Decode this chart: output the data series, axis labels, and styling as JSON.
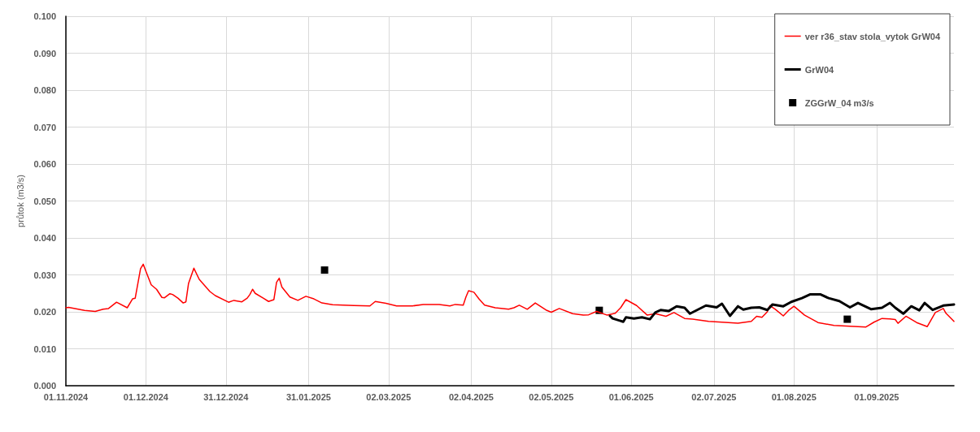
{
  "chart_data": {
    "type": "line",
    "ylabel": "průtok (m3/s)",
    "xlim": [
      "2024-11-01",
      "2025-09-30"
    ],
    "xticks": [
      {
        "value": "2024-11-01",
        "label": "01.11.2024"
      },
      {
        "value": "2024-12-01",
        "label": "01.12.2024"
      },
      {
        "value": "2024-12-31",
        "label": "31.12.2024"
      },
      {
        "value": "2025-01-31",
        "label": "31.01.2025"
      },
      {
        "value": "2025-03-02",
        "label": "02.03.2025"
      },
      {
        "value": "2025-04-02",
        "label": "02.04.2025"
      },
      {
        "value": "2025-05-02",
        "label": "02.05.2025"
      },
      {
        "value": "2025-06-01",
        "label": "01.06.2025"
      },
      {
        "value": "2025-07-02",
        "label": "02.07.2025"
      },
      {
        "value": "2025-08-01",
        "label": "01.08.2025"
      },
      {
        "value": "2025-09-01",
        "label": "01.09.2025"
      }
    ],
    "ylim": [
      0,
      0.1
    ],
    "yticks": [
      {
        "value": 0,
        "label": "0.000"
      },
      {
        "value": 0.01,
        "label": "0.010"
      },
      {
        "value": 0.02,
        "label": "0.020"
      },
      {
        "value": 0.03,
        "label": "0.030"
      },
      {
        "value": 0.04,
        "label": "0.040"
      },
      {
        "value": 0.05,
        "label": "0.050"
      },
      {
        "value": 0.06,
        "label": "0.060"
      },
      {
        "value": 0.07,
        "label": "0.070"
      },
      {
        "value": 0.08,
        "label": "0.080"
      },
      {
        "value": 0.09,
        "label": "0.090"
      },
      {
        "value": 0.1,
        "label": "0.100"
      }
    ],
    "grid": true,
    "legend": "top right",
    "series": [
      {
        "name": "ver r36_stav stola_vytok GrW04",
        "color": "#ff0000",
        "line_style": "solid",
        "marker": "none",
        "x": [
          "2024-11-01",
          "2024-11-02",
          "2024-11-08",
          "2024-11-12",
          "2024-11-15",
          "2024-11-17",
          "2024-11-20",
          "2024-11-24",
          "2024-11-26",
          "2024-11-27",
          "2024-11-29",
          "2024-11-30",
          "2024-12-01",
          "2024-12-03",
          "2024-12-05",
          "2024-12-07",
          "2024-12-08",
          "2024-12-10",
          "2024-12-11",
          "2024-12-13",
          "2024-12-15",
          "2024-12-16",
          "2024-12-17",
          "2024-12-19",
          "2024-12-21",
          "2024-12-25",
          "2024-12-27",
          "2025-01-01",
          "2025-01-03",
          "2025-01-06",
          "2025-01-08",
          "2025-01-09",
          "2025-01-10",
          "2025-01-11",
          "2025-01-14",
          "2025-01-16",
          "2025-01-18",
          "2025-01-19",
          "2025-01-20",
          "2025-01-21",
          "2025-01-24",
          "2025-01-27",
          "2025-01-30",
          "2025-02-02",
          "2025-02-05",
          "2025-02-09",
          "2025-02-17",
          "2025-02-23",
          "2025-02-25",
          "2025-03-01",
          "2025-03-05",
          "2025-03-11",
          "2025-03-15",
          "2025-03-21",
          "2025-03-25",
          "2025-03-27",
          "2025-03-30",
          "2025-03-31",
          "2025-04-01",
          "2025-04-03",
          "2025-04-05",
          "2025-04-07",
          "2025-04-11",
          "2025-04-16",
          "2025-04-18",
          "2025-04-20",
          "2025-04-23",
          "2025-04-26",
          "2025-04-30",
          "2025-05-02",
          "2025-05-05",
          "2025-05-10",
          "2025-05-14",
          "2025-05-16",
          "2025-05-19",
          "2025-05-23",
          "2025-05-26",
          "2025-05-28",
          "2025-05-30",
          "2025-06-03",
          "2025-06-07",
          "2025-06-10",
          "2025-06-14",
          "2025-06-17",
          "2025-06-21",
          "2025-06-24",
          "2025-06-30",
          "2025-07-05",
          "2025-07-11",
          "2025-07-16",
          "2025-07-18",
          "2025-07-20",
          "2025-07-22",
          "2025-07-23",
          "2025-07-25",
          "2025-07-28",
          "2025-07-30",
          "2025-08-01",
          "2025-08-05",
          "2025-08-10",
          "2025-08-16",
          "2025-08-22",
          "2025-08-28",
          "2025-08-31",
          "2025-09-03",
          "2025-09-06",
          "2025-09-08",
          "2025-09-09",
          "2025-09-12",
          "2025-09-16",
          "2025-09-20",
          "2025-09-23",
          "2025-09-26",
          "2025-09-27",
          "2025-09-30"
        ],
        "values": [
          0.0211,
          0.0212,
          0.0204,
          0.0201,
          0.0207,
          0.0209,
          0.0226,
          0.0211,
          0.0235,
          0.0237,
          0.0317,
          0.0329,
          0.031,
          0.0273,
          0.0261,
          0.0239,
          0.0238,
          0.0249,
          0.0247,
          0.0237,
          0.0224,
          0.0227,
          0.0277,
          0.0318,
          0.0288,
          0.0255,
          0.0244,
          0.0226,
          0.0231,
          0.0227,
          0.0237,
          0.0247,
          0.0261,
          0.025,
          0.0237,
          0.0228,
          0.0233,
          0.028,
          0.0291,
          0.0267,
          0.024,
          0.0231,
          0.0242,
          0.0235,
          0.0224,
          0.0219,
          0.0217,
          0.0216,
          0.0228,
          0.0223,
          0.0216,
          0.0216,
          0.022,
          0.022,
          0.0216,
          0.022,
          0.0218,
          0.024,
          0.0257,
          0.0253,
          0.0234,
          0.0218,
          0.0211,
          0.0207,
          0.0211,
          0.0218,
          0.0207,
          0.0224,
          0.0205,
          0.0199,
          0.0209,
          0.0195,
          0.0191,
          0.0192,
          0.0201,
          0.0191,
          0.0196,
          0.0211,
          0.0233,
          0.0217,
          0.0191,
          0.0195,
          0.0188,
          0.0198,
          0.0182,
          0.018,
          0.0174,
          0.0172,
          0.0169,
          0.0174,
          0.0188,
          0.0185,
          0.02,
          0.0217,
          0.0207,
          0.0189,
          0.0204,
          0.0215,
          0.0191,
          0.0171,
          0.0163,
          0.0161,
          0.0159,
          0.0172,
          0.0182,
          0.0181,
          0.0179,
          0.0169,
          0.0188,
          0.0171,
          0.016,
          0.0198,
          0.0209,
          0.0196,
          0.0174
        ]
      },
      {
        "name": "GrW04",
        "color": "#000000",
        "line_style": "solid",
        "marker": "none",
        "x": [
          "2025-05-24",
          "2025-05-25",
          "2025-05-29",
          "2025-05-30",
          "2025-06-02",
          "2025-06-05",
          "2025-06-08",
          "2025-06-10",
          "2025-06-12",
          "2025-06-15",
          "2025-06-18",
          "2025-06-21",
          "2025-06-23",
          "2025-06-29",
          "2025-07-03",
          "2025-07-05",
          "2025-07-08",
          "2025-07-11",
          "2025-07-13",
          "2025-07-16",
          "2025-07-19",
          "2025-07-22",
          "2025-07-24",
          "2025-07-28",
          "2025-07-31",
          "2025-08-04",
          "2025-08-07",
          "2025-08-11",
          "2025-08-14",
          "2025-08-18",
          "2025-08-22",
          "2025-08-25",
          "2025-08-30",
          "2025-09-03",
          "2025-09-06",
          "2025-09-08",
          "2025-09-11",
          "2025-09-14",
          "2025-09-17",
          "2025-09-19",
          "2025-09-22",
          "2025-09-26",
          "2025-09-30"
        ],
        "values": [
          0.0189,
          0.0182,
          0.0173,
          0.0185,
          0.0182,
          0.0185,
          0.018,
          0.0198,
          0.0205,
          0.0202,
          0.0215,
          0.0211,
          0.0195,
          0.0217,
          0.0212,
          0.0222,
          0.0189,
          0.0215,
          0.0206,
          0.0211,
          0.0212,
          0.0205,
          0.022,
          0.0215,
          0.0227,
          0.0237,
          0.0247,
          0.0247,
          0.0237,
          0.0229,
          0.0212,
          0.0224,
          0.0207,
          0.0211,
          0.0224,
          0.0211,
          0.0195,
          0.0215,
          0.0204,
          0.0224,
          0.0205,
          0.0217,
          0.022
        ]
      },
      {
        "name": "ZGGrW_04 m3/s",
        "type": "scatter",
        "color": "#000000",
        "marker": "square",
        "x": [
          "2025-02-06",
          "2025-05-20",
          "2025-08-21"
        ],
        "values": [
          0.0313,
          0.0204,
          0.018
        ]
      }
    ]
  }
}
